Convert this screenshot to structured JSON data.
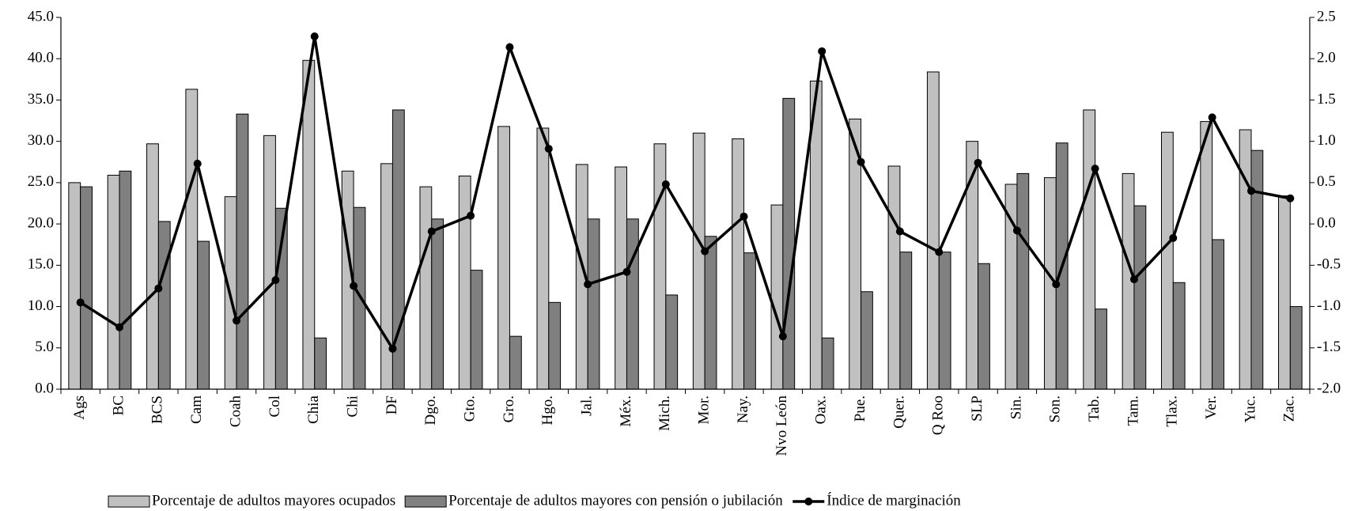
{
  "chart_data": {
    "type": "bar-line",
    "categories": [
      "Ags",
      "BC",
      "BCS",
      "Cam",
      "Coah",
      "Col",
      "Chia",
      "Chi",
      "DF",
      "Dgo.",
      "Gto.",
      "Gro.",
      "Hgo.",
      "Jal.",
      "Méx.",
      "Mich.",
      "Mor.",
      "Nay.",
      "Nvo León",
      "Oax.",
      "Pue.",
      "Quer.",
      "Q Roo",
      "SLP",
      "Sin.",
      "Son.",
      "Tab.",
      "Tam.",
      "Tlax.",
      "Ver.",
      "Yuc.",
      "Zac."
    ],
    "series": [
      {
        "name": "Porcentaje de adultos mayores ocupados",
        "type": "bar",
        "color": "#c0c0c0",
        "values": [
          25.0,
          25.9,
          29.7,
          36.3,
          23.3,
          30.7,
          39.8,
          26.4,
          27.3,
          24.5,
          25.8,
          31.8,
          31.6,
          27.2,
          26.9,
          29.7,
          31.0,
          30.3,
          22.3,
          37.3,
          32.7,
          27.0,
          38.4,
          30.0,
          24.8,
          25.6,
          33.8,
          26.1,
          31.1,
          32.4,
          31.4,
          23.4
        ]
      },
      {
        "name": "Porcentaje de adultos mayores con pensión o jubilación",
        "type": "bar",
        "color": "#808080",
        "values": [
          24.5,
          26.4,
          20.3,
          17.9,
          33.3,
          21.9,
          6.2,
          22.0,
          33.8,
          20.6,
          14.4,
          6.4,
          10.5,
          20.6,
          20.6,
          11.4,
          18.5,
          16.5,
          35.2,
          6.2,
          11.8,
          16.6,
          16.6,
          15.2,
          26.1,
          29.8,
          9.7,
          22.2,
          12.9,
          18.1,
          28.9,
          10.0
        ]
      },
      {
        "name": "Índice de marginación",
        "type": "line",
        "axis": "y2",
        "color": "#000000",
        "values": [
          -0.95,
          -1.25,
          -0.78,
          0.73,
          -1.17,
          -0.68,
          2.27,
          -0.75,
          -1.51,
          -0.09,
          0.1,
          2.14,
          0.91,
          -0.73,
          -0.58,
          0.48,
          -0.33,
          0.09,
          -1.36,
          2.09,
          0.75,
          -0.09,
          -0.34,
          0.74,
          -0.08,
          -0.73,
          0.67,
          -0.67,
          -0.17,
          1.29,
          0.4,
          0.31
        ]
      }
    ],
    "ylim": [
      0,
      45
    ],
    "yticks": [
      {
        "value": 0,
        "label": "0.0"
      },
      {
        "value": 5,
        "label": "5.0"
      },
      {
        "value": 10,
        "label": "10.0"
      },
      {
        "value": 15,
        "label": "15.0"
      },
      {
        "value": 20,
        "label": "20.0"
      },
      {
        "value": 25,
        "label": "25.0"
      },
      {
        "value": 30,
        "label": "30.0"
      },
      {
        "value": 35,
        "label": "35.0"
      },
      {
        "value": 40,
        "label": "40.0"
      },
      {
        "value": 45,
        "label": "45.0"
      }
    ],
    "y2lim": [
      -2,
      2.5
    ],
    "y2ticks": [
      {
        "value": -2,
        "label": "-2.0"
      },
      {
        "value": -1.5,
        "label": "-1.5"
      },
      {
        "value": -1,
        "label": "-1.0"
      },
      {
        "value": -0.5,
        "label": "-0.5"
      },
      {
        "value": 0,
        "label": "0.0"
      },
      {
        "value": 0.5,
        "label": "0.5"
      },
      {
        "value": 1,
        "label": "1.0"
      },
      {
        "value": 1.5,
        "label": "1.5"
      },
      {
        "value": 2,
        "label": "2.0"
      },
      {
        "value": 2.5,
        "label": "2.5"
      }
    ],
    "legend": "bottom"
  }
}
